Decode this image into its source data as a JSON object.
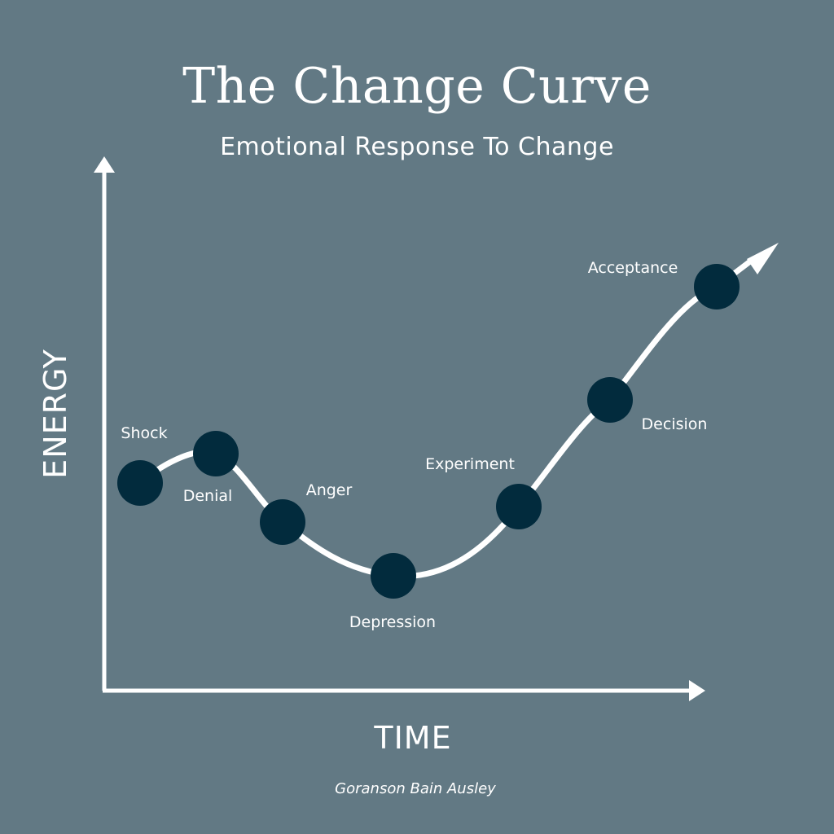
{
  "title": "The Change Curve",
  "subtitle": "Emotional Response To Change",
  "y_axis_label": "ENERGY",
  "x_axis_label": "TIME",
  "credit": "Goranson Bain Ausley",
  "colors": {
    "background": "#627984",
    "line": "#ffffff",
    "node": "#022b3d",
    "text": "#ffffff"
  },
  "stages": [
    {
      "label": "Shock"
    },
    {
      "label": "Denial"
    },
    {
      "label": "Anger"
    },
    {
      "label": "Depression"
    },
    {
      "label": "Experiment"
    },
    {
      "label": "Decision"
    },
    {
      "label": "Acceptance"
    }
  ]
}
